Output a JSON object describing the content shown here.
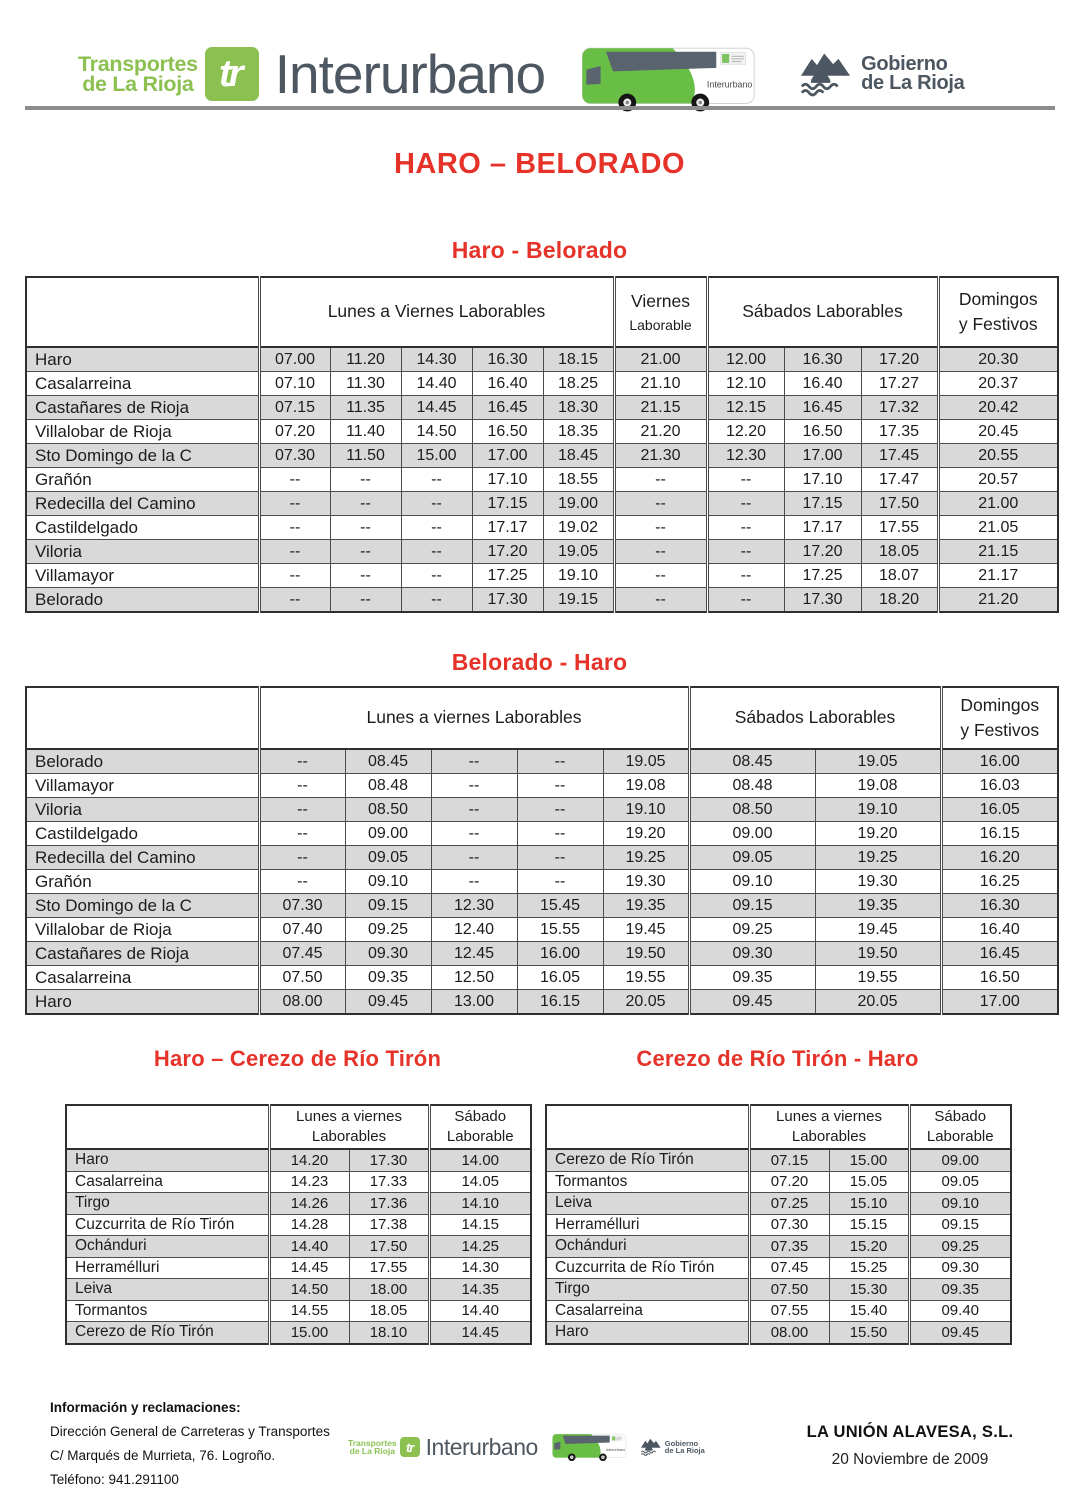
{
  "header": {
    "brand_line1": "Transportes",
    "brand_line2": "de La Rioja",
    "tr_logo": "tr",
    "product": "Interurbano",
    "bus_text": "Interurbano",
    "gov_line1": "Gobierno",
    "gov_line2": "de La Rioja"
  },
  "page_title": "HARO – BELORADO",
  "colors": {
    "accent_red": "#E63329",
    "brand_green": "#8CC152",
    "bus_green": "#69BE46",
    "dark_slate": "#4D5761",
    "row_gray": "#D9D9D9"
  },
  "tables": [
    {
      "title": "Haro - Belorado",
      "groups": [
        {
          "lines": [
            "Lunes a Viernes Laborables"
          ],
          "span": 5
        },
        {
          "lines": [
            "Viernes",
            "Laborable"
          ],
          "span": 1
        },
        {
          "lines": [
            "Sábados Laborables"
          ],
          "span": 3
        },
        {
          "lines": [
            "Domingos",
            "y Festivos"
          ],
          "span": 1
        }
      ],
      "rows": [
        {
          "name": "Haro",
          "times": [
            "07.00",
            "11.20",
            "14.30",
            "16.30",
            "18.15",
            "21.00",
            "12.00",
            "16.30",
            "17.20",
            "20.30"
          ]
        },
        {
          "name": "Casalarreina",
          "times": [
            "07.10",
            "11.30",
            "14.40",
            "16.40",
            "18.25",
            "21.10",
            "12.10",
            "16.40",
            "17.27",
            "20.37"
          ]
        },
        {
          "name": "Castañares de Rioja",
          "times": [
            "07.15",
            "11.35",
            "14.45",
            "16.45",
            "18.30",
            "21.15",
            "12.15",
            "16.45",
            "17.32",
            "20.42"
          ]
        },
        {
          "name": "Villalobar de Rioja",
          "times": [
            "07.20",
            "11.40",
            "14.50",
            "16.50",
            "18.35",
            "21.20",
            "12.20",
            "16.50",
            "17.35",
            "20.45"
          ]
        },
        {
          "name": "Sto Domingo de  la C",
          "times": [
            "07.30",
            "11.50",
            "15.00",
            "17.00",
            "18.45",
            "21.30",
            "12.30",
            "17.00",
            "17.45",
            "20.55"
          ]
        },
        {
          "name": "Grañón",
          "times": [
            "--",
            "--",
            "--",
            "17.10",
            "18.55",
            "--",
            "--",
            "17.10",
            "17.47",
            "20.57"
          ]
        },
        {
          "name": "Redecilla del  Camino",
          "times": [
            "--",
            "--",
            "--",
            "17.15",
            "19.00",
            "--",
            "--",
            "17.15",
            "17.50",
            "21.00"
          ]
        },
        {
          "name": "Castildelgado",
          "times": [
            "--",
            "--",
            "--",
            "17.17",
            "19.02",
            "--",
            "--",
            "17.17",
            "17.55",
            "21.05"
          ]
        },
        {
          "name": "Viloria",
          "times": [
            "--",
            "--",
            "--",
            "17.20",
            "19.05",
            "--",
            "--",
            "17.20",
            "18.05",
            "21.15"
          ]
        },
        {
          "name": "Villamayor",
          "times": [
            "--",
            "--",
            "--",
            "17.25",
            "19.10",
            "--",
            "--",
            "17.25",
            "18.07",
            "21.17"
          ]
        },
        {
          "name": "Belorado",
          "times": [
            "--",
            "--",
            "--",
            "17.30",
            "19.15",
            "--",
            "--",
            "17.30",
            "18.20",
            "21.20"
          ]
        }
      ]
    },
    {
      "title": "Belorado - Haro",
      "groups": [
        {
          "lines": [
            "Lunes a viernes Laborables"
          ],
          "span": 5
        },
        {
          "lines": [
            "Sábados Laborables"
          ],
          "span": 2
        },
        {
          "lines": [
            "Domingos",
            "y Festivos"
          ],
          "span": 1
        }
      ],
      "rows": [
        {
          "name": "Belorado",
          "times": [
            "--",
            "08.45",
            "--",
            "--",
            "19.05",
            "08.45",
            "19.05",
            "16.00"
          ]
        },
        {
          "name": "Villamayor",
          "times": [
            "--",
            "08.48",
            "--",
            "--",
            "19.08",
            "08.48",
            "19.08",
            "16.03"
          ]
        },
        {
          "name": "Viloria",
          "times": [
            "--",
            "08.50",
            "--",
            "--",
            "19.10",
            "08.50",
            "19.10",
            "16.05"
          ]
        },
        {
          "name": "Castildelgado",
          "times": [
            "--",
            "09.00",
            "--",
            "--",
            "19.20",
            "09.00",
            "19.20",
            "16.15"
          ]
        },
        {
          "name": "Redecilla del Camino",
          "times": [
            "--",
            "09.05",
            "--",
            "--",
            "19.25",
            "09.05",
            "19.25",
            "16.20"
          ]
        },
        {
          "name": "Grañón",
          "times": [
            "--",
            "09.10",
            "--",
            "--",
            "19.30",
            "09.10",
            "19.30",
            "16.25"
          ]
        },
        {
          "name": "Sto Domingo de  la C",
          "times": [
            "07.30",
            "09.15",
            "12.30",
            "15.45",
            "19.35",
            "09.15",
            "19.35",
            "16.30"
          ]
        },
        {
          "name": "Villalobar de Rioja",
          "times": [
            "07.40",
            "09.25",
            "12.40",
            "15.55",
            "19.45",
            "09.25",
            "19.45",
            "16.40"
          ]
        },
        {
          "name": "Castañares de Rioja",
          "times": [
            "07.45",
            "09.30",
            "12.45",
            "16.00",
            "19.50",
            "09.30",
            "19.50",
            "16.45"
          ]
        },
        {
          "name": "Casalarreina",
          "times": [
            "07.50",
            "09.35",
            "12.50",
            "16.05",
            "19.55",
            "09.35",
            "19.55",
            "16.50"
          ]
        },
        {
          "name": "Haro",
          "times": [
            "08.00",
            "09.45",
            "13.00",
            "16.15",
            "20.05",
            "09.45",
            "20.05",
            "17.00"
          ]
        }
      ]
    },
    {
      "title": "Haro – Cerezo de Río Tirón",
      "groups": [
        {
          "lines": [
            "Lunes a viernes",
            "Laborables"
          ],
          "span": 2
        },
        {
          "lines": [
            "Sábado",
            "Laborable"
          ],
          "span": 1
        }
      ],
      "rows": [
        {
          "name": "Haro",
          "times": [
            "14.20",
            "17.30",
            "14.00"
          ]
        },
        {
          "name": "Casalarreina",
          "times": [
            "14.23",
            "17.33",
            "14.05"
          ]
        },
        {
          "name": "Tirgo",
          "times": [
            "14.26",
            "17.36",
            "14.10"
          ]
        },
        {
          "name": "Cuzcurrita de Río Tirón",
          "times": [
            "14.28",
            "17.38",
            "14.15"
          ]
        },
        {
          "name": "Ochánduri",
          "times": [
            "14.40",
            "17.50",
            "14.25"
          ]
        },
        {
          "name": "Herramélluri",
          "times": [
            "14.45",
            "17.55",
            "14.30"
          ]
        },
        {
          "name": "Leiva",
          "times": [
            "14.50",
            "18.00",
            "14.35"
          ]
        },
        {
          "name": "Tormantos",
          "times": [
            "14.55",
            "18.05",
            "14.40"
          ]
        },
        {
          "name": "Cerezo de Río Tirón",
          "times": [
            "15.00",
            "18.10",
            "14.45"
          ]
        }
      ]
    },
    {
      "title": "Cerezo de Río Tirón - Haro",
      "groups": [
        {
          "lines": [
            "Lunes a viernes",
            "Laborables"
          ],
          "span": 2
        },
        {
          "lines": [
            "Sábado",
            "Laborable"
          ],
          "span": 1
        }
      ],
      "rows": [
        {
          "name": "Cerezo de Río Tirón",
          "times": [
            "07.15",
            "15.00",
            "09.00"
          ]
        },
        {
          "name": "Tormantos",
          "times": [
            "07.20",
            "15.05",
            "09.05"
          ]
        },
        {
          "name": "Leiva",
          "times": [
            "07.25",
            "15.10",
            "09.10"
          ]
        },
        {
          "name": "Herramélluri",
          "times": [
            "07.30",
            "15.15",
            "09.15"
          ]
        },
        {
          "name": "Ochánduri",
          "times": [
            "07.35",
            "15.20",
            "09.25"
          ]
        },
        {
          "name": "Cuzcurrita de Río Tirón",
          "times": [
            "07.45",
            "15.25",
            "09.30"
          ]
        },
        {
          "name": "Tirgo",
          "times": [
            "07.50",
            "15.30",
            "09.35"
          ]
        },
        {
          "name": "Casalarreina",
          "times": [
            "07.55",
            "15.40",
            "09.40"
          ]
        },
        {
          "name": "Haro",
          "times": [
            "08.00",
            "15.50",
            "09.45"
          ]
        }
      ]
    }
  ],
  "footer": {
    "info_title": "Información y  reclamaciones:",
    "info_lines": [
      "Dirección General de Carreteras y Transportes",
      "C/ Marqués de Murrieta, 76. Logroño.",
      "Teléfono: 941.291100"
    ],
    "company": "LA UNIÓN ALAVESA, S.L.",
    "date": "20 Noviembre de 2009"
  }
}
